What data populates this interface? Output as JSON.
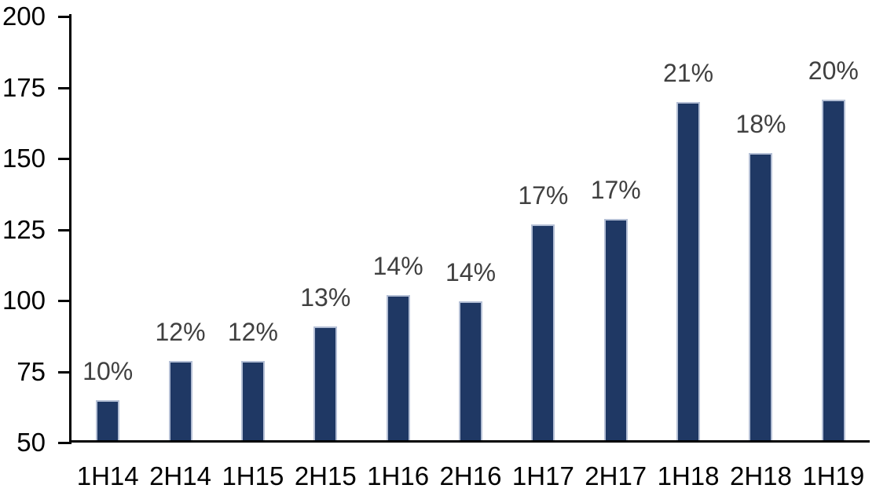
{
  "chart_data": {
    "type": "bar",
    "categories": [
      "1H14",
      "2H14",
      "1H15",
      "2H15",
      "1H16",
      "2H16",
      "1H17",
      "2H17",
      "1H18",
      "2H18",
      "1H19"
    ],
    "values": [
      64,
      78,
      78,
      90,
      101,
      99,
      126,
      128,
      169,
      151,
      170
    ],
    "bar_labels": [
      "10%",
      "12%",
      "12%",
      "13%",
      "14%",
      "14%",
      "17%",
      "17%",
      "21%",
      "18%",
      "20%"
    ],
    "title": "",
    "xlabel": "",
    "ylabel": "",
    "ylim": [
      50,
      200
    ],
    "y_ticks": [
      50,
      75,
      100,
      125,
      150,
      175,
      200
    ],
    "grid": "off",
    "legend": "none",
    "colors": {
      "bar_fill": "#1F3864",
      "bar_border": "#B4BFD5",
      "data_label": "#404040",
      "axis": "#000000",
      "background": "#FFFFFF"
    }
  }
}
